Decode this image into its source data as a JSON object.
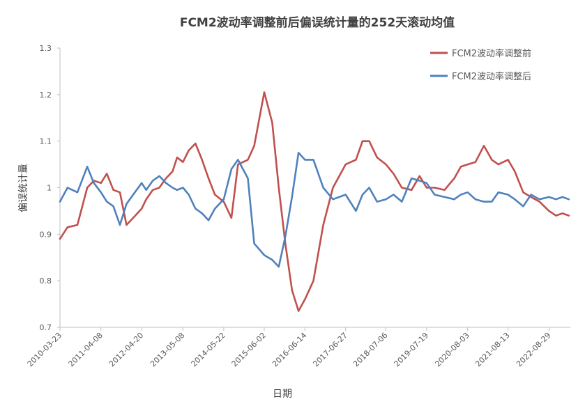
{
  "chart_data": {
    "type": "line",
    "title": "FCM2波动率调整前后偏误统计量的252天滚动均值",
    "xlabel": "日期",
    "ylabel": "偏误统计量",
    "ylim": [
      0.7,
      1.3
    ],
    "yticks": [
      "0.7",
      "0.8",
      "0.9",
      "1",
      "1.1",
      "1.2",
      "1.3"
    ],
    "xticks": [
      "2010-03-23",
      "2011-04-08",
      "2012-04-20",
      "2013-05-08",
      "2014-05-22",
      "2015-06-02",
      "2016-06-14",
      "2017-06-27",
      "2018-07-06",
      "2019-07-19",
      "2020-08-03",
      "2021-08-13",
      "2022-08-29"
    ],
    "grid": false,
    "legend_position": "top-right",
    "series": [
      {
        "name": "FCM2波动率调整前",
        "color": "#c0504d",
        "x": [
          "2010-03-23",
          "2010-06-01",
          "2010-09-01",
          "2010-12-01",
          "2011-02-01",
          "2011-04-08",
          "2011-06-01",
          "2011-08-01",
          "2011-10-01",
          "2011-12-01",
          "2012-02-01",
          "2012-04-20",
          "2012-06-01",
          "2012-08-01",
          "2012-10-01",
          "2012-12-01",
          "2013-02-01",
          "2013-03-15",
          "2013-05-08",
          "2013-07-01",
          "2013-09-01",
          "2013-11-01",
          "2014-01-01",
          "2014-03-01",
          "2014-05-22",
          "2014-08-01",
          "2014-10-01",
          "2015-01-01",
          "2015-03-01",
          "2015-06-02",
          "2015-08-15",
          "2015-10-15",
          "2015-12-15",
          "2016-02-15",
          "2016-04-15",
          "2016-06-14",
          "2016-09-01",
          "2016-12-01",
          "2017-03-01",
          "2017-06-27",
          "2017-10-01",
          "2017-12-01",
          "2018-02-01",
          "2018-04-15",
          "2018-07-06",
          "2018-09-15",
          "2018-12-01",
          "2019-03-01",
          "2019-05-15",
          "2019-07-19",
          "2019-10-01",
          "2020-01-01",
          "2020-04-01",
          "2020-06-01",
          "2020-08-03",
          "2020-10-15",
          "2021-01-01",
          "2021-03-15",
          "2021-05-15",
          "2021-08-13",
          "2021-10-15",
          "2022-01-01",
          "2022-03-15",
          "2022-06-01",
          "2022-08-29",
          "2022-11-01",
          "2023-01-01",
          "2023-03-01"
        ],
        "values": [
          0.89,
          0.915,
          0.92,
          1.0,
          1.015,
          1.01,
          1.03,
          0.995,
          0.99,
          0.92,
          0.935,
          0.955,
          0.975,
          0.995,
          1.0,
          1.02,
          1.035,
          1.065,
          1.055,
          1.08,
          1.095,
          1.06,
          1.02,
          0.985,
          0.97,
          0.935,
          1.05,
          1.06,
          1.09,
          1.205,
          1.14,
          1.0,
          0.88,
          0.78,
          0.735,
          0.76,
          0.8,
          0.92,
          1.0,
          1.05,
          1.06,
          1.1,
          1.1,
          1.065,
          1.05,
          1.03,
          1.0,
          0.995,
          1.025,
          1.0,
          1.0,
          0.995,
          1.02,
          1.045,
          1.05,
          1.055,
          1.09,
          1.06,
          1.05,
          1.06,
          1.035,
          0.99,
          0.98,
          0.97,
          0.95,
          0.94,
          0.945,
          0.94
        ]
      },
      {
        "name": "FCM2波动率调整后",
        "color": "#4f81bd",
        "x": [
          "2010-03-23",
          "2010-06-01",
          "2010-09-01",
          "2010-12-01",
          "2011-02-01",
          "2011-04-08",
          "2011-06-01",
          "2011-08-01",
          "2011-10-01",
          "2011-12-01",
          "2012-02-01",
          "2012-04-20",
          "2012-06-01",
          "2012-08-01",
          "2012-10-01",
          "2012-12-01",
          "2013-02-01",
          "2013-03-15",
          "2013-05-08",
          "2013-07-01",
          "2013-09-01",
          "2013-11-01",
          "2014-01-01",
          "2014-03-01",
          "2014-05-22",
          "2014-08-01",
          "2014-10-01",
          "2015-01-01",
          "2015-03-01",
          "2015-06-02",
          "2015-08-15",
          "2015-10-15",
          "2015-12-15",
          "2016-02-15",
          "2016-04-15",
          "2016-06-14",
          "2016-09-01",
          "2016-12-01",
          "2017-03-01",
          "2017-06-27",
          "2017-10-01",
          "2017-12-01",
          "2018-02-01",
          "2018-04-15",
          "2018-07-06",
          "2018-09-15",
          "2018-12-01",
          "2019-03-01",
          "2019-05-15",
          "2019-07-19",
          "2019-10-01",
          "2020-01-01",
          "2020-04-01",
          "2020-06-01",
          "2020-08-03",
          "2020-10-15",
          "2021-01-01",
          "2021-03-15",
          "2021-05-15",
          "2021-08-13",
          "2021-10-15",
          "2022-01-01",
          "2022-03-15",
          "2022-06-01",
          "2022-08-29",
          "2022-11-01",
          "2023-01-01",
          "2023-03-01"
        ],
        "values": [
          0.97,
          1.0,
          0.99,
          1.045,
          1.01,
          0.99,
          0.97,
          0.96,
          0.92,
          0.965,
          0.985,
          1.01,
          0.995,
          1.015,
          1.025,
          1.01,
          1.0,
          0.995,
          1.0,
          0.985,
          0.955,
          0.945,
          0.93,
          0.955,
          0.975,
          1.04,
          1.06,
          1.02,
          0.88,
          0.855,
          0.845,
          0.83,
          0.895,
          0.98,
          1.075,
          1.06,
          1.06,
          1.0,
          0.975,
          0.985,
          0.95,
          0.985,
          1.0,
          0.97,
          0.975,
          0.985,
          0.97,
          1.02,
          1.015,
          1.01,
          0.985,
          0.98,
          0.975,
          0.985,
          0.99,
          0.975,
          0.97,
          0.97,
          0.99,
          0.985,
          0.975,
          0.96,
          0.985,
          0.975,
          0.98,
          0.975,
          0.98,
          0.975
        ]
      }
    ]
  }
}
